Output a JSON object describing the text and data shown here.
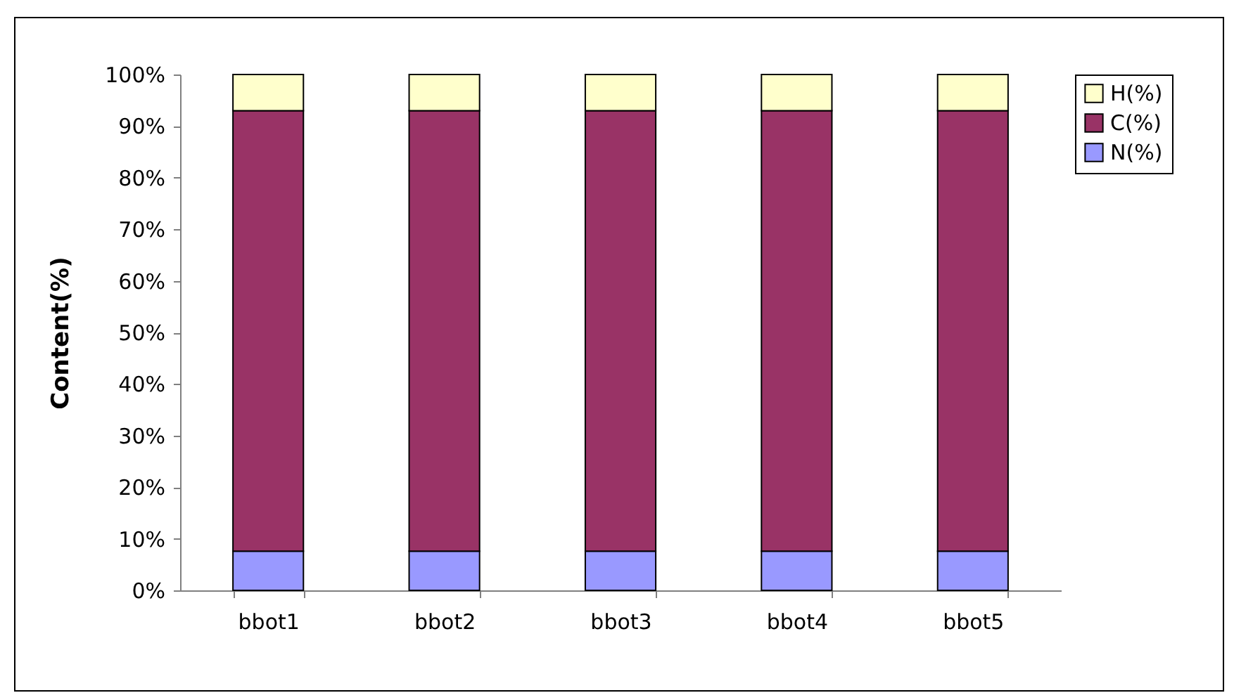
{
  "chart_data": {
    "type": "bar",
    "stacked": true,
    "ylabel": "Content(%)",
    "categories": [
      "bbot1",
      "bbot2",
      "bbot3",
      "bbot4",
      "bbot5"
    ],
    "series": [
      {
        "name": "N(%)",
        "color": "#9999ff",
        "values": [
          7.6,
          7.6,
          7.6,
          7.6,
          7.6
        ]
      },
      {
        "name": "C(%)",
        "color": "#993366",
        "values": [
          85.4,
          85.4,
          85.4,
          85.4,
          85.4
        ]
      },
      {
        "name": "H(%)",
        "color": "#ffffcc",
        "values": [
          7.0,
          7.0,
          7.0,
          7.0,
          7.0
        ]
      }
    ],
    "ylim": [
      0,
      100
    ],
    "yticks": [
      {
        "value": 0,
        "label": "0%"
      },
      {
        "value": 10,
        "label": "10%"
      },
      {
        "value": 20,
        "label": "20%"
      },
      {
        "value": 30,
        "label": "30%"
      },
      {
        "value": 40,
        "label": "40%"
      },
      {
        "value": 50,
        "label": "50%"
      },
      {
        "value": 60,
        "label": "60%"
      },
      {
        "value": 70,
        "label": "70%"
      },
      {
        "value": 80,
        "label": "80%"
      },
      {
        "value": 90,
        "label": "90%"
      },
      {
        "value": 100,
        "label": "100%"
      }
    ],
    "grid": false,
    "legend": "right"
  }
}
